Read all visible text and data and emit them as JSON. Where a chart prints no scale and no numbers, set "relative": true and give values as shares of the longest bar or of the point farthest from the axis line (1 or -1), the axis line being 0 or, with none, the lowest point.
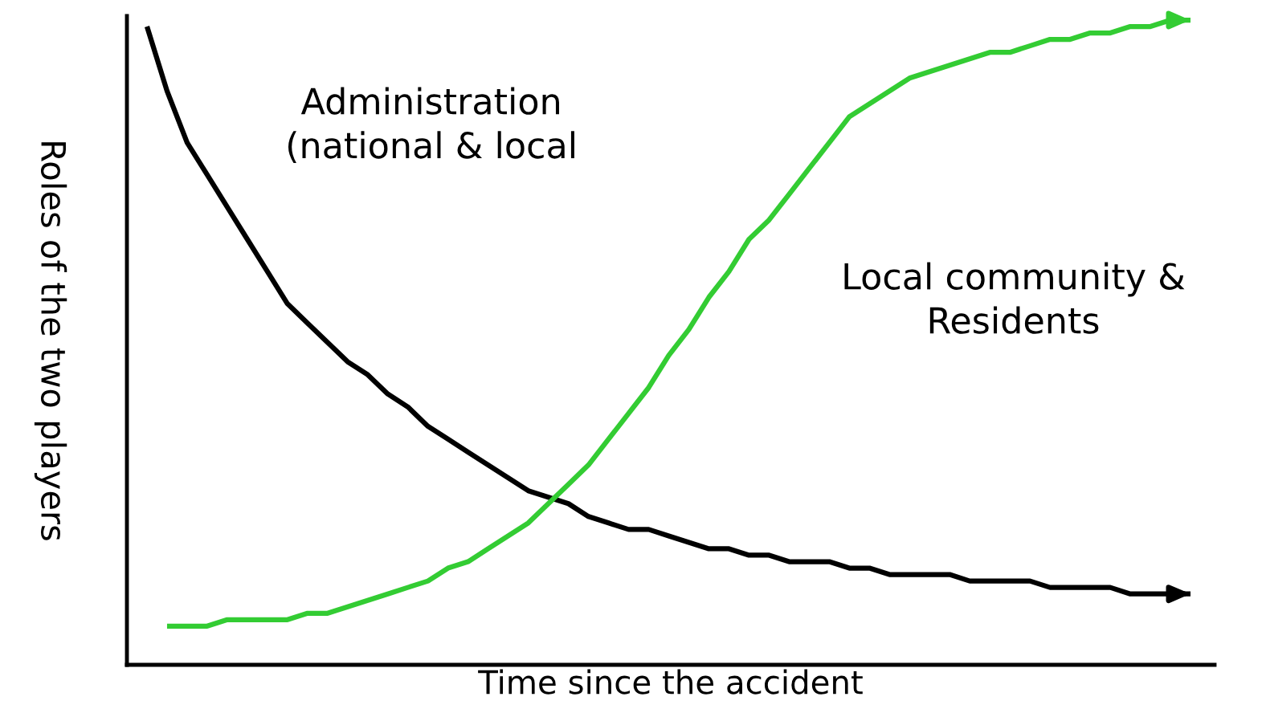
{
  "chart_data": {
    "type": "line",
    "relative": true,
    "xlabel": "Time since the accident",
    "ylabel": "Roles of the two players",
    "legend": false,
    "marker": "none",
    "line_style": "solid",
    "categories": [
      null,
      null,
      null,
      null,
      null,
      null,
      null,
      null,
      null,
      null,
      null,
      null,
      null,
      null,
      null,
      null,
      null,
      null,
      null,
      null,
      null,
      null,
      null,
      null,
      null,
      null,
      null,
      null,
      null,
      null,
      null,
      null,
      null,
      null,
      null,
      null,
      null,
      null,
      null,
      null,
      null,
      null,
      null,
      null,
      null,
      null,
      null,
      null,
      null,
      null,
      null,
      null,
      null
    ],
    "series": [
      {
        "name": "Administration\n(national & local",
        "color": "#000000",
        "values": [
          0.99,
          0.89,
          0.81,
          0.76,
          0.71,
          0.66,
          0.61,
          0.56,
          0.53,
          0.5,
          0.47,
          0.45,
          0.42,
          0.4,
          0.37,
          0.35,
          0.33,
          0.31,
          0.29,
          0.27,
          0.26,
          0.25,
          0.23,
          0.22,
          0.21,
          0.21,
          0.2,
          0.19,
          0.18,
          0.18,
          0.17,
          0.17,
          0.16,
          0.16,
          0.16,
          0.15,
          0.15,
          0.14,
          0.14,
          0.14,
          0.14,
          0.13,
          0.13,
          0.13,
          0.13,
          0.12,
          0.12,
          0.12,
          0.12,
          0.11,
          0.11,
          0.11,
          0.11
        ]
      },
      {
        "name": "Local community &\nResidents",
        "color": "#33cc33",
        "values": [
          null,
          0.06,
          0.06,
          0.06,
          0.07,
          0.07,
          0.07,
          0.07,
          0.08,
          0.08,
          0.09,
          0.1,
          0.11,
          0.12,
          0.13,
          0.15,
          0.16,
          0.18,
          0.2,
          0.22,
          0.25,
          0.28,
          0.31,
          0.35,
          0.39,
          0.43,
          0.48,
          0.52,
          0.57,
          0.61,
          0.66,
          0.69,
          0.73,
          0.77,
          0.81,
          0.85,
          0.87,
          0.89,
          0.91,
          0.92,
          0.93,
          0.94,
          0.95,
          0.95,
          0.96,
          0.97,
          0.97,
          0.98,
          0.98,
          0.99,
          0.99,
          1.0,
          1.0
        ]
      }
    ]
  }
}
